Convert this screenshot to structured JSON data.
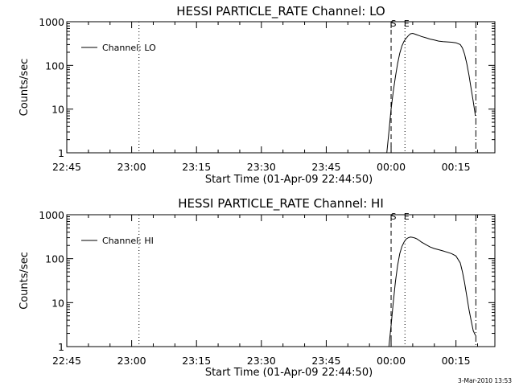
{
  "footer": {
    "timestamp": "3-Mar-2010 13:53"
  },
  "chart_data": [
    {
      "type": "line",
      "title": "HESSI PARTICLE_RATE Channel: LO",
      "xlabel": "Start Time (01-Apr-09 22:44:50)",
      "ylabel": "Counts/sec",
      "yscale": "log",
      "ylim": [
        1,
        1000
      ],
      "y_ticks": [
        1,
        10,
        100,
        1000
      ],
      "y_tick_labels": [
        "1",
        "10",
        "100",
        "1000"
      ],
      "xlim_minutes": [
        0,
        99
      ],
      "x_ticks_minutes": [
        0,
        15,
        30,
        45,
        60,
        75,
        90
      ],
      "x_tick_labels": [
        "22:45",
        "23:00",
        "23:15",
        "23:30",
        "23:45",
        "00:00",
        "00:15"
      ],
      "legend": {
        "position": "top-left",
        "label": "Channel: LO"
      },
      "markers": {
        "start_label": "S",
        "end_label": "E",
        "start_minutes": 75.0,
        "end_minutes": 78.2
      },
      "vertical_lines_minutes": {
        "dotted": [
          16.7,
          78.2
        ],
        "dashed": [
          75.0
        ],
        "dashdot": [
          94.6
        ]
      },
      "series": [
        {
          "name": "Channel: LO",
          "x": [
            74.0,
            74.5,
            75.0,
            75.5,
            76.0,
            76.5,
            77.0,
            77.5,
            78.0,
            78.5,
            79.0,
            79.5,
            80.0,
            80.5,
            81.0,
            81.5,
            82.0,
            83.0,
            84.0,
            85.0,
            86.0,
            87.0,
            88.0,
            89.0,
            90.0,
            91.0,
            91.5,
            92.0,
            92.5,
            93.0,
            93.5,
            94.0,
            94.5
          ],
          "y": [
            1.0,
            3.0,
            10,
            25,
            55,
            110,
            190,
            280,
            360,
            420,
            480,
            530,
            540,
            520,
            500,
            480,
            460,
            430,
            400,
            380,
            360,
            350,
            345,
            340,
            330,
            300,
            250,
            180,
            110,
            60,
            30,
            15,
            7
          ]
        }
      ]
    },
    {
      "type": "line",
      "title": "HESSI PARTICLE_RATE Channel: HI",
      "xlabel": "Start Time (01-Apr-09 22:44:50)",
      "ylabel": "Counts/sec",
      "yscale": "log",
      "ylim": [
        1,
        1000
      ],
      "y_ticks": [
        1,
        10,
        100,
        1000
      ],
      "y_tick_labels": [
        "1",
        "10",
        "100",
        "1000"
      ],
      "xlim_minutes": [
        0,
        99
      ],
      "x_ticks_minutes": [
        0,
        15,
        30,
        45,
        60,
        75,
        90
      ],
      "x_tick_labels": [
        "22:45",
        "23:00",
        "23:15",
        "23:30",
        "23:45",
        "00:00",
        "00:15"
      ],
      "legend": {
        "position": "top-left",
        "label": "Channel: HI"
      },
      "markers": {
        "start_label": "S",
        "end_label": "E",
        "start_minutes": 75.0,
        "end_minutes": 78.2
      },
      "vertical_lines_minutes": {
        "dotted": [
          16.7,
          78.2
        ],
        "dashed": [
          75.0
        ],
        "dashdot": [
          94.6
        ]
      },
      "series": [
        {
          "name": "Channel: HI",
          "x": [
            74.5,
            75.0,
            75.5,
            76.0,
            76.5,
            77.0,
            77.5,
            78.0,
            78.5,
            79.0,
            79.5,
            80.0,
            80.5,
            81.0,
            81.5,
            82.0,
            83.0,
            84.0,
            85.0,
            86.0,
            87.0,
            88.0,
            89.0,
            90.0,
            91.0,
            91.5,
            92.0,
            92.5,
            93.0,
            93.5,
            94.0,
            94.5
          ],
          "y": [
            1.0,
            3.0,
            10,
            30,
            70,
            130,
            190,
            240,
            280,
            300,
            310,
            305,
            295,
            280,
            260,
            240,
            210,
            185,
            170,
            160,
            150,
            140,
            130,
            115,
            80,
            50,
            28,
            14,
            7,
            4,
            2.3,
            1.8
          ]
        }
      ]
    }
  ]
}
